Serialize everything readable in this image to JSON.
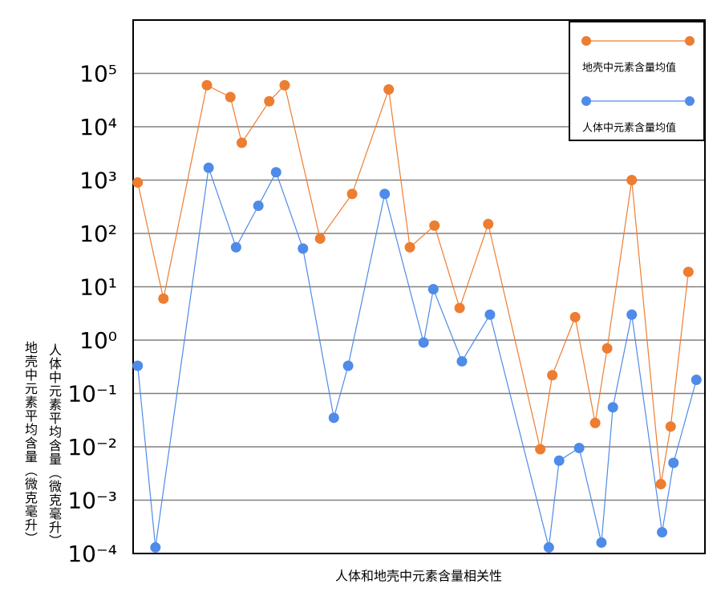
{
  "chart_data": {
    "type": "line",
    "xlabel": "人体和地壳中元素含量相关性",
    "ylabels": [
      "地壳中元素平均含量（微克毫升）",
      "人体中元素平均含量（微克毫升）"
    ],
    "log_y": true,
    "grid": true,
    "legend": "upper right",
    "xlim": [
      0,
      100
    ],
    "ylim": [
      0.0001,
      1000000
    ],
    "yticks": [
      {
        "value": 0.0001,
        "label": "10⁻⁴"
      },
      {
        "value": 0.001,
        "label": "10⁻³"
      },
      {
        "value": 0.01,
        "label": "10⁻²"
      },
      {
        "value": 0.1,
        "label": "10⁻¹"
      },
      {
        "value": 1,
        "label": "10⁰"
      },
      {
        "value": 10,
        "label": "10¹"
      },
      {
        "value": 100,
        "label": "10²"
      },
      {
        "value": 1000,
        "label": "10³"
      },
      {
        "value": 10000,
        "label": "10⁴"
      },
      {
        "value": 100000,
        "label": "10⁵"
      }
    ],
    "series": [
      {
        "name": "地壳中元素含量均值",
        "color": "#ed7d31",
        "x": [
          0.8,
          5.3,
          12.9,
          17.0,
          19.0,
          23.8,
          26.5,
          32.7,
          38.3,
          44.7,
          48.4,
          52.7,
          57.1,
          62.1,
          71.2,
          73.3,
          77.3,
          80.8,
          82.9,
          87.2,
          92.3,
          94.0,
          97.1
        ],
        "values": [
          900,
          6,
          60000,
          36000,
          5000,
          30000,
          60000,
          80,
          550,
          50000,
          55,
          140,
          4,
          150,
          0.009,
          0.22,
          2.7,
          0.028,
          0.7,
          1000,
          0.002,
          0.024,
          19
        ]
      },
      {
        "name": "人体中元素含量均值",
        "color": "#4f8be8",
        "x": [
          0.8,
          3.9,
          13.2,
          18.0,
          21.9,
          25.0,
          29.7,
          35.1,
          37.6,
          44.0,
          50.8,
          52.5,
          57.5,
          62.4,
          72.7,
          74.5,
          78.0,
          81.9,
          83.9,
          87.2,
          92.5,
          94.5,
          98.5
        ],
        "values": [
          0.33,
          0.00013,
          1700,
          55,
          330,
          1400,
          52,
          0.035,
          0.33,
          550,
          0.9,
          9,
          0.4,
          3,
          0.00013,
          0.0055,
          0.0095,
          0.00016,
          0.055,
          3,
          0.00025,
          0.005,
          0.18
        ]
      }
    ]
  }
}
